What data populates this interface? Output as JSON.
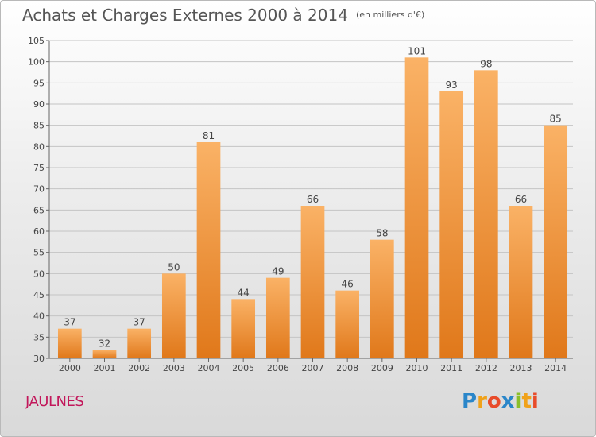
{
  "title": "Achats et Charges Externes 2000 à 2014",
  "subtitle": "(en milliers d'€)",
  "commune": "JAULNES",
  "logo": {
    "text": "Proxiti",
    "letters": [
      {
        "char": "P",
        "color": "#2a86c9"
      },
      {
        "char": "r",
        "color": "#f0a21a"
      },
      {
        "char": "o",
        "color": "#e84b2a"
      },
      {
        "char": "x",
        "color": "#2a86c9"
      },
      {
        "char": "i",
        "color": "#8bbf2a"
      },
      {
        "char": "t",
        "color": "#f0a21a"
      },
      {
        "char": "i",
        "color": "#e84b2a"
      }
    ]
  },
  "colors": {
    "bar_light": "#fab266",
    "bar_dark": "#e0781a",
    "grid": "#c4c4c4",
    "axis": "#666666",
    "label": "#444444"
  },
  "chart_data": {
    "type": "bar",
    "categories": [
      "2000",
      "2001",
      "2002",
      "2003",
      "2004",
      "2005",
      "2006",
      "2007",
      "2008",
      "2009",
      "2010",
      "2011",
      "2012",
      "2013",
      "2014"
    ],
    "values": [
      37,
      32,
      37,
      50,
      81,
      44,
      49,
      66,
      46,
      58,
      101,
      93,
      98,
      66,
      85
    ],
    "title": "Achats et Charges Externes 2000 à 2014",
    "subtitle": "(en milliers d'€)",
    "ylim": [
      30,
      105
    ],
    "yticks": [
      30,
      35,
      40,
      45,
      50,
      55,
      60,
      65,
      70,
      75,
      80,
      85,
      90,
      95,
      100,
      105
    ],
    "grid": true,
    "data_labels": true
  }
}
